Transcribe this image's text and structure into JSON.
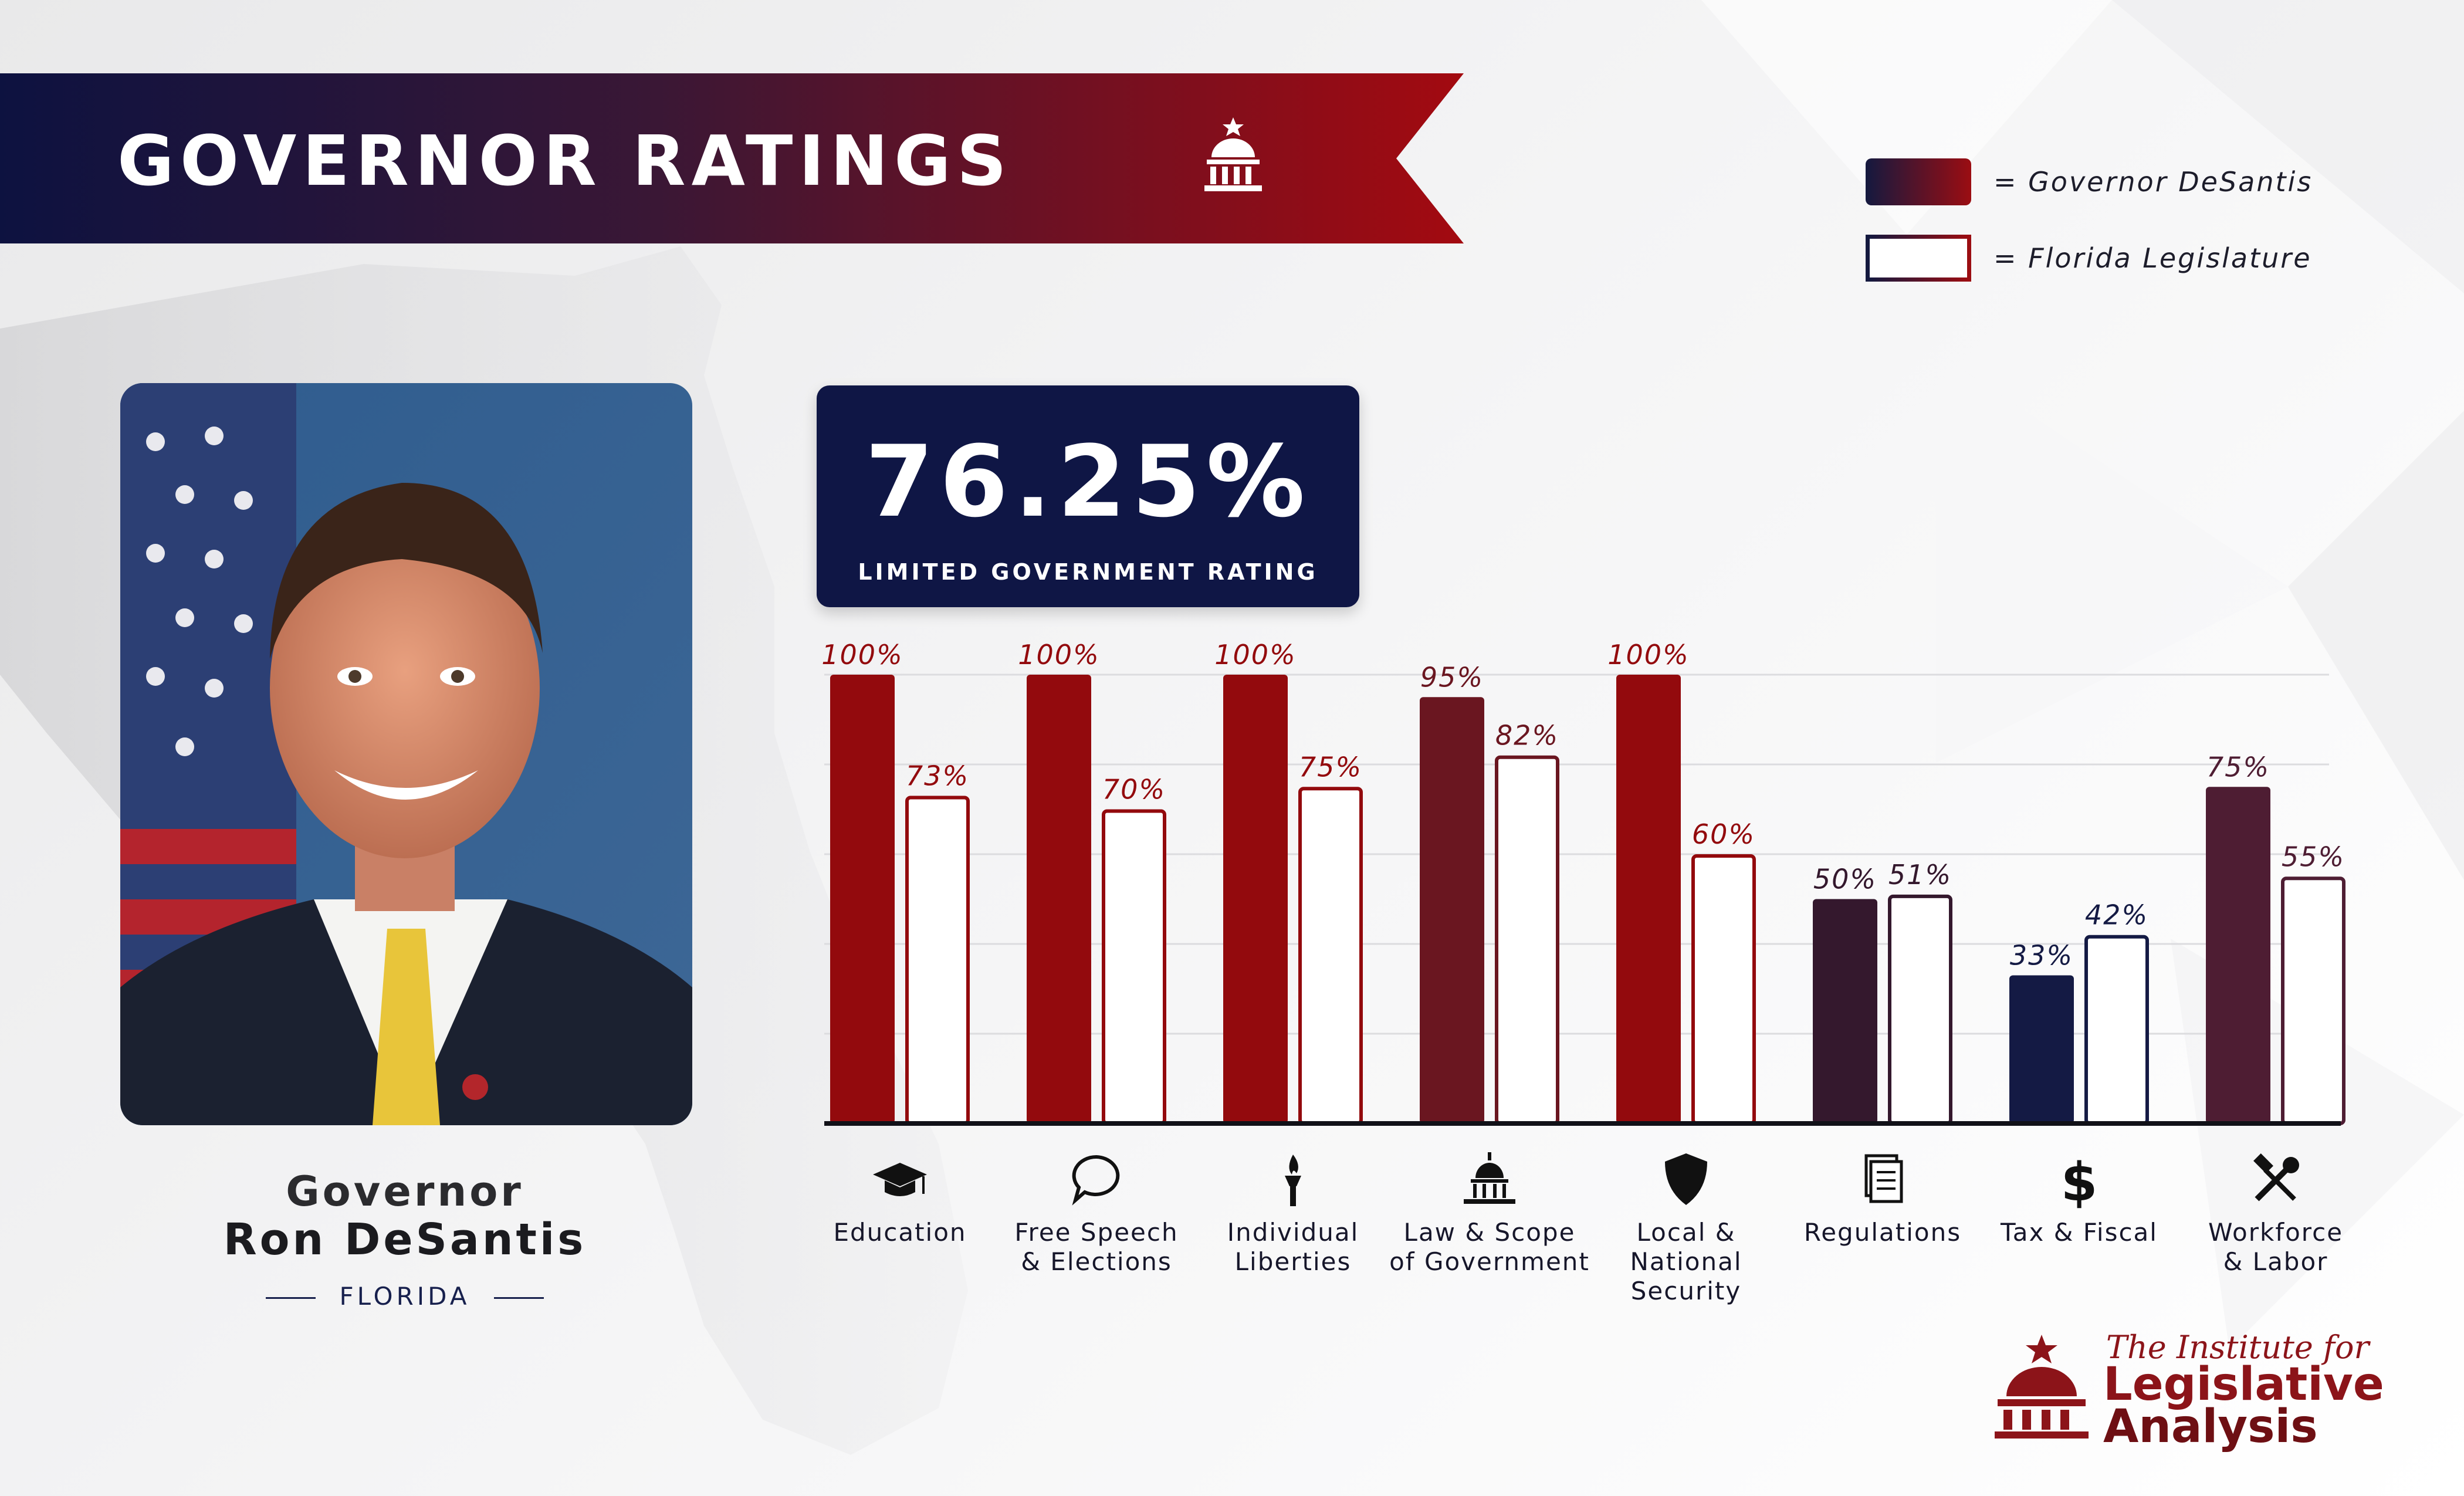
{
  "header": {
    "title": "GOVERNOR RATINGS"
  },
  "legend": {
    "governor": "= Governor DeSantis",
    "legislature": "= Florida Legislature"
  },
  "profile": {
    "role": "Governor",
    "name": "Ron DeSantis",
    "state": "FLORIDA"
  },
  "rating": {
    "value": "76.25%",
    "label": "LIMITED GOVERNMENT RATING"
  },
  "colors": {
    "navy": "#0f1645",
    "red": "#930a0d",
    "maroon": "#6a1620",
    "plum": "#4e1d33",
    "dark_plum": "#34182d"
  },
  "chart_data": {
    "type": "bar",
    "categories": [
      "Education",
      "Free Speech\n& Elections",
      "Individual\nLiberties",
      "Law & Scope\nof Government",
      "Local &\nNational\nSecurity",
      "Regulations",
      "Tax & Fiscal",
      "Workforce\n& Labor"
    ],
    "category_icons": [
      "graduation-cap-icon",
      "speech-bubble-icon",
      "torch-icon",
      "capitol-icon",
      "shield-icon",
      "document-icon",
      "dollar-icon",
      "tools-icon"
    ],
    "series": [
      {
        "name": "Governor DeSantis",
        "values": [
          100,
          100,
          100,
          95,
          100,
          50,
          33,
          75
        ],
        "colors": [
          "#930a0d",
          "#930a0d",
          "#930a0d",
          "#6a1620",
          "#930a0d",
          "#34182d",
          "#141a44",
          "#4e1d33"
        ]
      },
      {
        "name": "Florida Legislature",
        "values": [
          73,
          70,
          75,
          82,
          60,
          51,
          42,
          55
        ],
        "colors": [
          "#930a0d",
          "#930a0d",
          "#930a0d",
          "#6a1620",
          "#930a0d",
          "#34182d",
          "#141a44",
          "#4e1d33"
        ]
      }
    ],
    "value_labels": [
      [
        "100%",
        "100%",
        "100%",
        "95%",
        "100%",
        "50%",
        "33%",
        "75%"
      ],
      [
        "73%",
        "70%",
        "75%",
        "82%",
        "60%",
        "51%",
        "42%",
        "55%"
      ]
    ],
    "ylim": [
      0,
      100
    ],
    "grid": true,
    "legend_position": "top-right"
  },
  "logo": {
    "line1": "The Institute for",
    "line2": "Legislative",
    "line3": "Analysis"
  }
}
